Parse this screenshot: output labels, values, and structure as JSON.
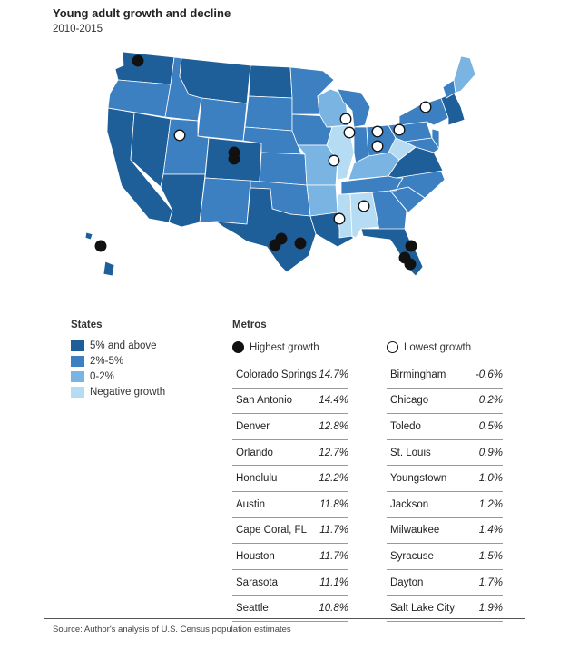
{
  "title": "Young adult growth and decline",
  "subtitle": "2010-2015",
  "colors": {
    "dark": "#1f5f99",
    "mid": "#3c80c2",
    "light": "#79b4e2",
    "pale": "#b5dcf2",
    "border": "#ffffff"
  },
  "states_legend": {
    "heading": "States",
    "items": [
      {
        "label": "5% and above",
        "color": "#1f5f99"
      },
      {
        "label": "2%-5%",
        "color": "#3c80c2"
      },
      {
        "label": "0-2%",
        "color": "#79b4e2"
      },
      {
        "label": "Negative growth",
        "color": "#b5dcf2"
      }
    ]
  },
  "metros": {
    "heading": "Metros",
    "highest_label": "Highest growth",
    "lowest_label": "Lowest growth",
    "highest": [
      {
        "city": "Colorado Springs",
        "value": "14.7%"
      },
      {
        "city": "San Antonio",
        "value": "14.4%"
      },
      {
        "city": "Denver",
        "value": "12.8%"
      },
      {
        "city": "Orlando",
        "value": "12.7%"
      },
      {
        "city": "Honolulu",
        "value": "12.2%"
      },
      {
        "city": "Austin",
        "value": "11.8%"
      },
      {
        "city": "Cape Coral, FL",
        "value": "11.7%"
      },
      {
        "city": "Houston",
        "value": "11.7%"
      },
      {
        "city": "Sarasota",
        "value": "11.1%"
      },
      {
        "city": "Seattle",
        "value": "10.8%"
      }
    ],
    "lowest": [
      {
        "city": "Birmingham",
        "value": "-0.6%"
      },
      {
        "city": "Chicago",
        "value": "0.2%"
      },
      {
        "city": "Toledo",
        "value": "0.5%"
      },
      {
        "city": "St. Louis",
        "value": "0.9%"
      },
      {
        "city": "Youngstown",
        "value": "1.0%"
      },
      {
        "city": "Jackson",
        "value": "1.2%"
      },
      {
        "city": "Milwaukee",
        "value": "1.4%"
      },
      {
        "city": "Syracuse",
        "value": "1.5%"
      },
      {
        "city": "Dayton",
        "value": "1.7%"
      },
      {
        "city": "Salt Lake City",
        "value": "1.9%"
      }
    ]
  },
  "source": "Source: Author's analysis of U.S. Census population estimates"
}
